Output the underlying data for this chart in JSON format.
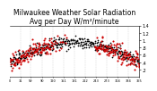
{
  "title": "Milwaukee Weather Solar Radiation",
  "subtitle": "Avg per Day W/m²/minute",
  "ylim": [
    0,
    1.4
  ],
  "ytick_values": [
    0.2,
    0.4,
    0.6,
    0.8,
    1.0,
    1.2,
    1.4
  ],
  "ytick_labels": [
    ".2",
    ".4",
    ".6",
    ".8",
    "1.",
    "1.2",
    "1.4"
  ],
  "color_black": "#000000",
  "color_red": "#cc0000",
  "color_grid": "#bbbbbb",
  "background": "#ffffff",
  "title_fontsize": 5.5,
  "tick_fontsize": 3.5,
  "xlim": [
    0,
    365
  ],
  "markersize": 1.5,
  "seed_black": 10,
  "seed_red": 77
}
